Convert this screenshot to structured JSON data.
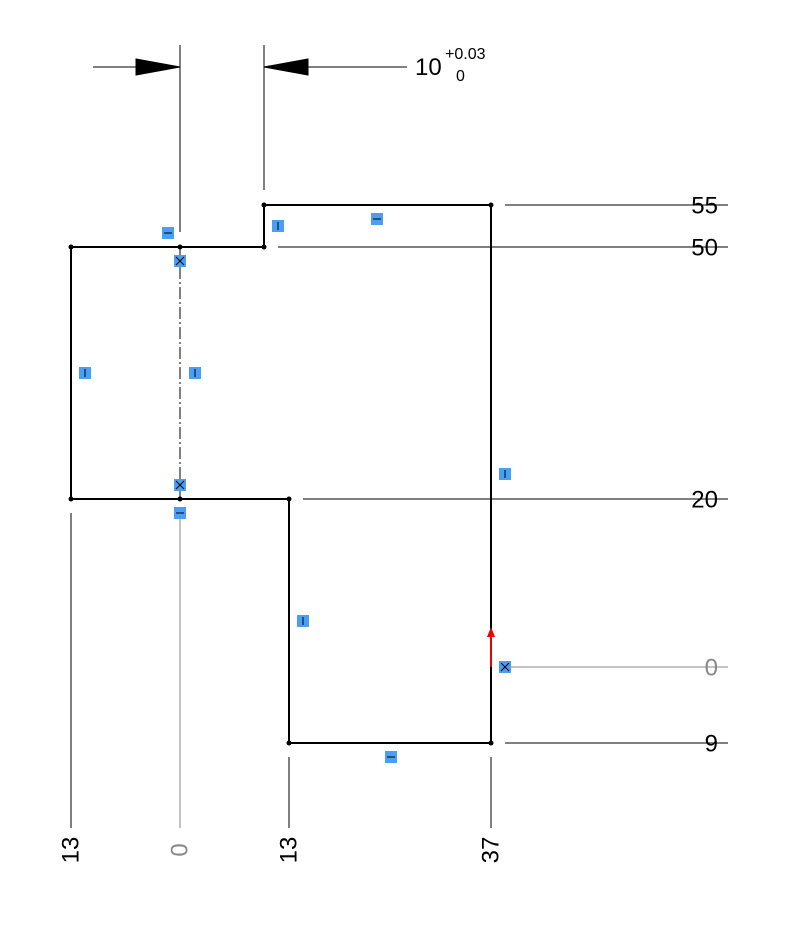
{
  "dimensions": {
    "width": {
      "value": "10",
      "upper_tolerance": "+0.03",
      "lower_tolerance": "0"
    },
    "vertical_ordinates": [
      "55",
      "50",
      "20",
      "0",
      "9"
    ],
    "horizontal_ordinates": [
      "13",
      "0",
      "13",
      "37"
    ]
  }
}
